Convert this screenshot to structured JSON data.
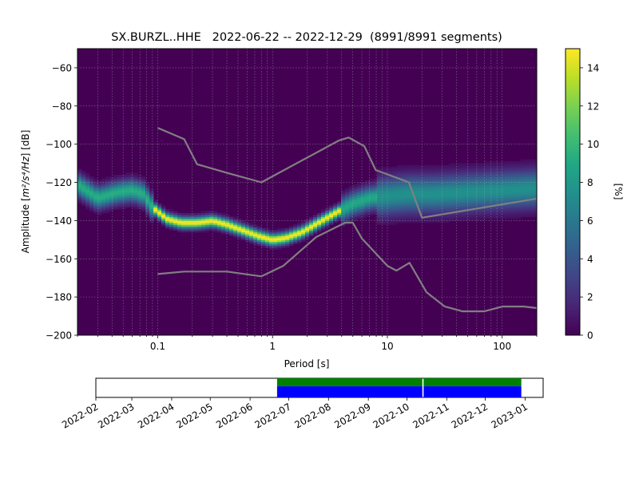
{
  "chart_data": {
    "type": "heatmap",
    "title": "SX.BURZL..HHE   2022-06-22 -- 2022-12-29  (8991/8991 segments)",
    "xlabel": "Period [s]",
    "ylabel_prefix": "Amplitude [",
    "ylabel_units": "m²/s⁴/Hz",
    "ylabel_suffix": "] [dB]",
    "x_scale": "log",
    "xlim": [
      0.02,
      200
    ],
    "ylim": [
      -200,
      -50
    ],
    "x_ticks": [
      {
        "v": 0.1,
        "label": "0.1"
      },
      {
        "v": 1,
        "label": "1"
      },
      {
        "v": 10,
        "label": "10"
      },
      {
        "v": 100,
        "label": "100"
      }
    ],
    "y_ticks": [
      {
        "v": -60,
        "label": "−60"
      },
      {
        "v": -80,
        "label": "−80"
      },
      {
        "v": -100,
        "label": "−100"
      },
      {
        "v": -120,
        "label": "−120"
      },
      {
        "v": -140,
        "label": "−140"
      },
      {
        "v": -160,
        "label": "−160"
      },
      {
        "v": -180,
        "label": "−180"
      },
      {
        "v": -200,
        "label": "−200"
      }
    ],
    "grid": true,
    "colorbar": {
      "label": "[%]",
      "range": [
        0,
        15
      ],
      "ticks": [
        {
          "v": 0,
          "label": "0"
        },
        {
          "v": 2,
          "label": "2"
        },
        {
          "v": 4,
          "label": "4"
        },
        {
          "v": 6,
          "label": "6"
        },
        {
          "v": 8,
          "label": "8"
        },
        {
          "v": 10,
          "label": "10"
        },
        {
          "v": 12,
          "label": "12"
        },
        {
          "v": 14,
          "label": "14"
        }
      ],
      "colormap": "viridis"
    },
    "mode_line": [
      [
        0.02,
        -121
      ],
      [
        0.03,
        -128
      ],
      [
        0.045,
        -125
      ],
      [
        0.06,
        -124
      ],
      [
        0.075,
        -126
      ],
      [
        0.09,
        -133
      ],
      [
        0.12,
        -139
      ],
      [
        0.16,
        -141
      ],
      [
        0.22,
        -141
      ],
      [
        0.3,
        -140
      ],
      [
        0.4,
        -142
      ],
      [
        0.55,
        -145
      ],
      [
        0.75,
        -148
      ],
      [
        1.0,
        -150
      ],
      [
        1.3,
        -149
      ],
      [
        1.8,
        -146
      ],
      [
        2.5,
        -141
      ],
      [
        3.5,
        -136
      ],
      [
        5,
        -131
      ],
      [
        7,
        -128
      ],
      [
        10,
        -127
      ],
      [
        15,
        -126
      ],
      [
        25,
        -126
      ],
      [
        50,
        -125
      ],
      [
        100,
        -124
      ],
      [
        200,
        -123
      ]
    ],
    "noise_model_high": [
      [
        0.1,
        -91.5
      ],
      [
        0.17,
        -97.4
      ],
      [
        0.22,
        -110.5
      ],
      [
        0.4,
        -115
      ],
      [
        0.8,
        -120
      ],
      [
        3.8,
        -98
      ],
      [
        4.6,
        -96.5
      ],
      [
        6.3,
        -101
      ],
      [
        7.9,
        -113.5
      ],
      [
        15.4,
        -120
      ],
      [
        20,
        -138.5
      ],
      [
        200,
        -128.5
      ]
    ],
    "noise_model_low": [
      [
        0.1,
        -168
      ],
      [
        0.17,
        -166.7
      ],
      [
        0.4,
        -166.7
      ],
      [
        0.8,
        -169.2
      ],
      [
        1.24,
        -163.7
      ],
      [
        2.4,
        -148.6
      ],
      [
        4.3,
        -141.1
      ],
      [
        5.0,
        -141.1
      ],
      [
        6.0,
        -149.4
      ],
      [
        10,
        -163.7
      ],
      [
        12,
        -166.2
      ],
      [
        15.6,
        -162.1
      ],
      [
        21.9,
        -177.5
      ],
      [
        31.6,
        -185
      ],
      [
        45,
        -187.5
      ],
      [
        70,
        -187.5
      ],
      [
        101,
        -185
      ],
      [
        154,
        -185
      ],
      [
        200,
        -185.8
      ]
    ]
  },
  "timeline": {
    "date_range": [
      "2022-02-01",
      "2023-01-15"
    ],
    "ticks": [
      "2022-02",
      "2022-03",
      "2022-04",
      "2022-05",
      "2022-06",
      "2022-07",
      "2022-08",
      "2022-09",
      "2022-10",
      "2022-11",
      "2022-12",
      "2023-01"
    ],
    "data_segments": [
      [
        "2022-06-22",
        "2022-10-13"
      ],
      [
        "2022-10-14",
        "2022-12-29"
      ]
    ],
    "colors": {
      "data": "#0000ff",
      "coverage": "#008000",
      "gap": "#ffffff"
    }
  }
}
